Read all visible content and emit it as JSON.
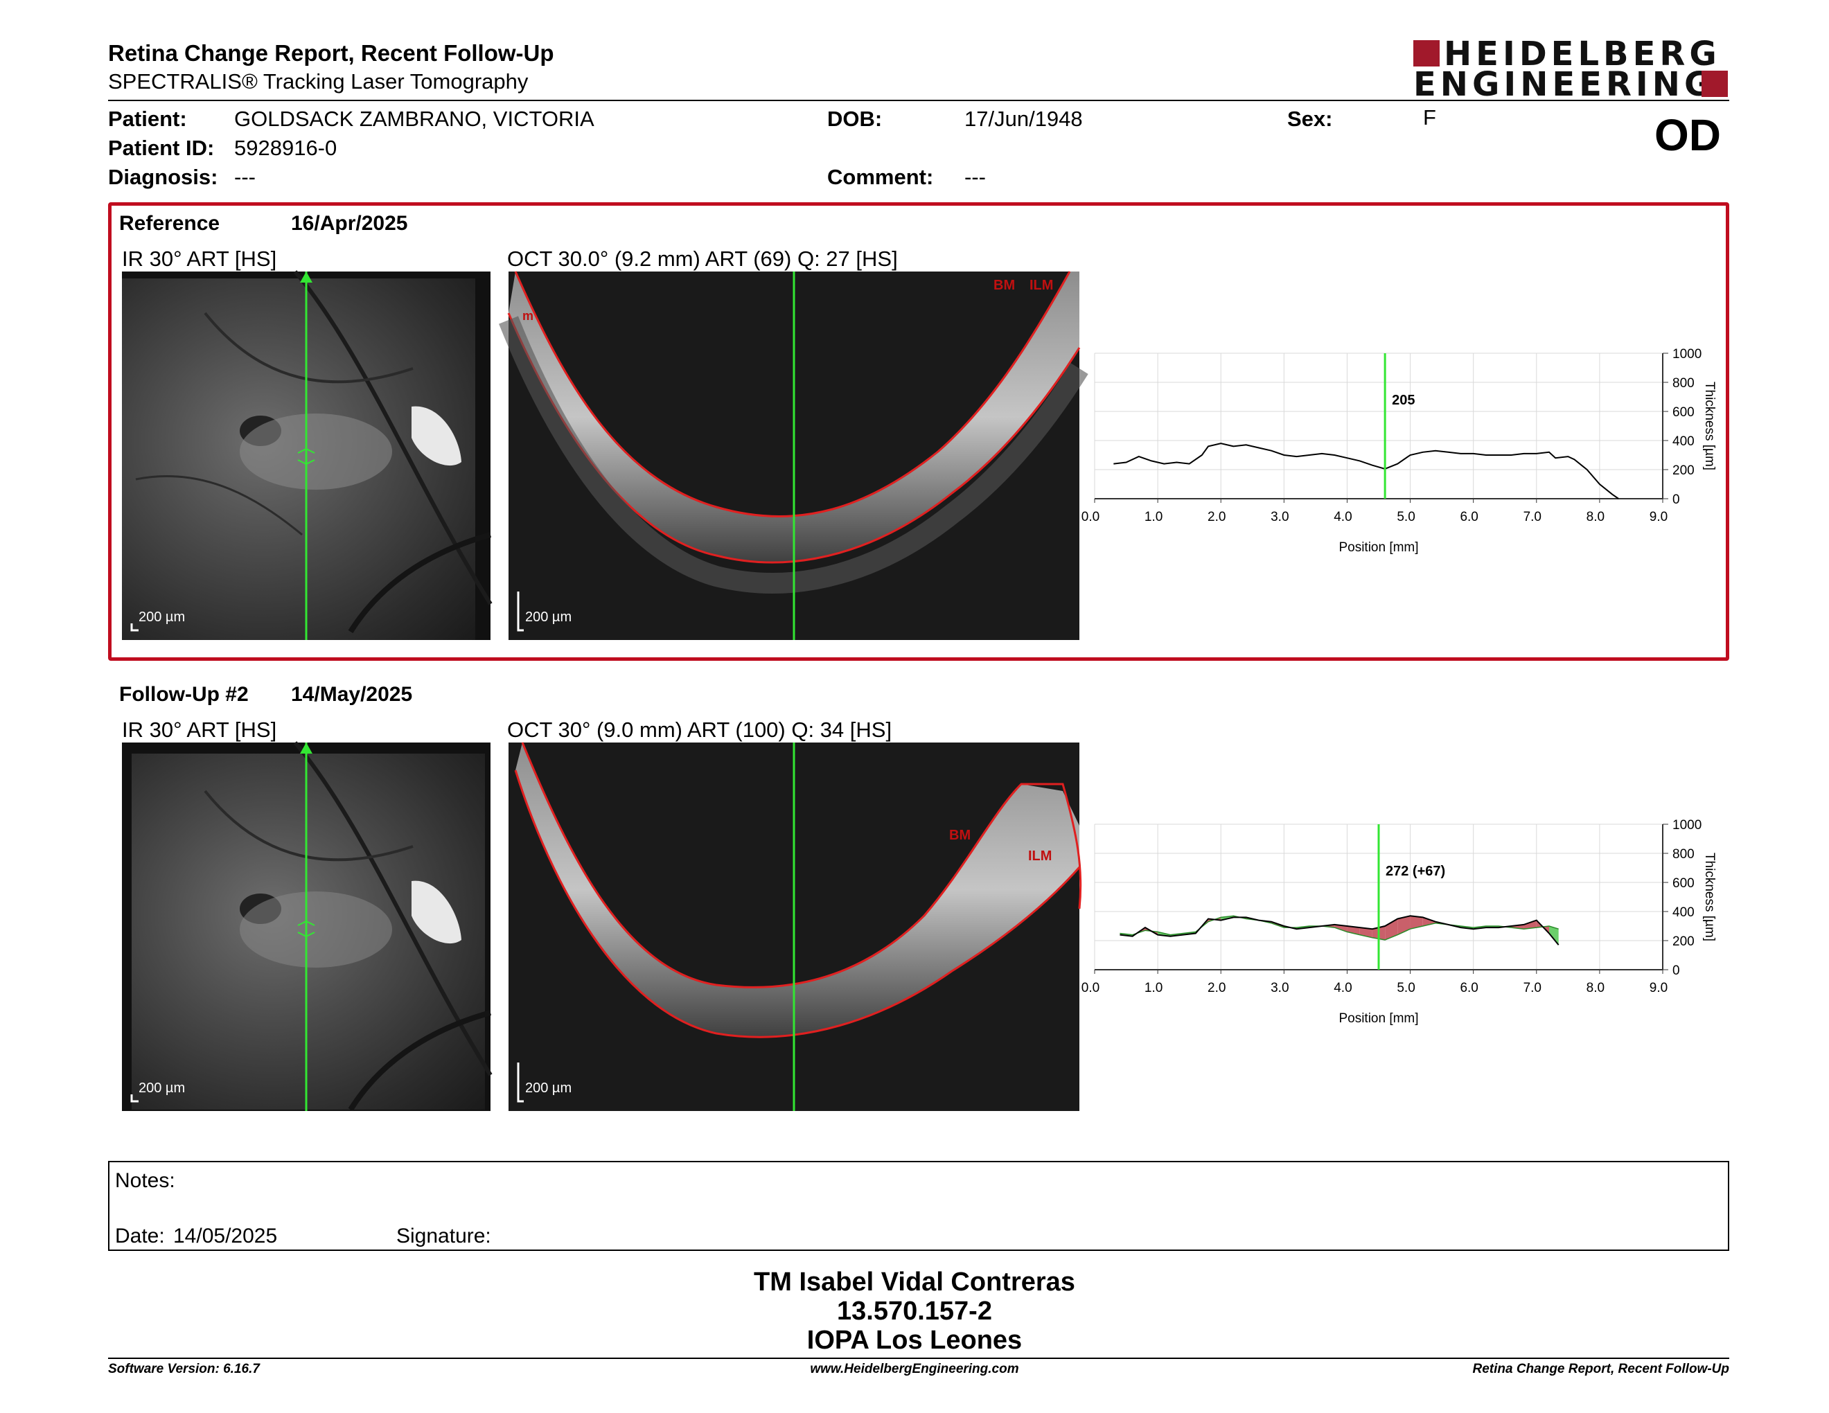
{
  "header": {
    "title": "Retina Change Report, Recent Follow-Up",
    "subtitle": "SPECTRALIS® Tracking Laser Tomography",
    "logo_line1": "HEIDELBERG",
    "logo_line2": "ENGINEERING",
    "eye": "OD"
  },
  "patient": {
    "patient_label": "Patient:",
    "patient_value": "GOLDSACK ZAMBRANO, VICTORIA",
    "id_label": "Patient ID:",
    "id_value": "5928916-0",
    "diagnosis_label": "Diagnosis:",
    "diagnosis_value": "---",
    "dob_label": "DOB:",
    "dob_value": "17/Jun/1948",
    "comment_label": "Comment:",
    "comment_value": "---",
    "sex_label": "Sex:",
    "sex_value": "F"
  },
  "reference": {
    "label": "Reference",
    "date": "16/Apr/2025",
    "ir_title": "IR 30° ART [HS]",
    "oct_title": "OCT 30.0° (9.2 mm) ART (69) Q: 27 [HS]",
    "ir_scale": "200 µm",
    "oct_scale": "200 µm",
    "seg_labels": [
      "BM",
      "ILM",
      "m"
    ]
  },
  "followup": {
    "label": "Follow-Up #2",
    "date": "14/May/2025",
    "ir_title": "IR 30° ART [HS]",
    "oct_title": "OCT 30° (9.0 mm) ART (100) Q: 34 [HS]",
    "ir_scale": "200 µm",
    "oct_scale": "200 µm",
    "seg_labels": [
      "BM",
      "ILM"
    ]
  },
  "chart_data": [
    {
      "type": "line",
      "name": "reference-thickness",
      "xlabel": "Position [mm]",
      "ylabel": "Thickness [µm]",
      "xlim": [
        0,
        9
      ],
      "ylim": [
        0,
        1000
      ],
      "xticks": [
        "0.0",
        "1.0",
        "2.0",
        "3.0",
        "4.0",
        "5.0",
        "6.0",
        "7.0",
        "8.0",
        "9.0"
      ],
      "yticks": [
        "0",
        "200",
        "400",
        "600",
        "800",
        "1000"
      ],
      "grid": true,
      "marker_x": 4.6,
      "marker_label": "205",
      "x": [
        0.3,
        0.5,
        0.7,
        0.9,
        1.1,
        1.3,
        1.5,
        1.7,
        1.8,
        2.0,
        2.2,
        2.4,
        2.6,
        2.8,
        3.0,
        3.2,
        3.4,
        3.6,
        3.8,
        4.0,
        4.2,
        4.4,
        4.6,
        4.8,
        5.0,
        5.2,
        5.4,
        5.6,
        5.8,
        6.0,
        6.2,
        6.4,
        6.6,
        6.8,
        7.0,
        7.2,
        7.3,
        7.5,
        7.6,
        7.8,
        8.0,
        8.2,
        8.3
      ],
      "y": [
        240,
        250,
        290,
        260,
        240,
        250,
        240,
        300,
        360,
        380,
        360,
        370,
        350,
        330,
        300,
        290,
        300,
        310,
        300,
        280,
        260,
        230,
        205,
        240,
        300,
        320,
        330,
        320,
        310,
        310,
        300,
        300,
        300,
        310,
        310,
        320,
        280,
        290,
        270,
        200,
        100,
        30,
        0
      ]
    },
    {
      "type": "line",
      "name": "followup-thickness",
      "xlabel": "Position [mm]",
      "ylabel": "Thickness [µm]",
      "xlim": [
        0,
        9
      ],
      "ylim": [
        0,
        1000
      ],
      "xticks": [
        "0.0",
        "1.0",
        "2.0",
        "3.0",
        "4.0",
        "5.0",
        "6.0",
        "7.0",
        "8.0",
        "9.0"
      ],
      "yticks": [
        "0",
        "200",
        "400",
        "600",
        "800",
        "1000"
      ],
      "grid": true,
      "marker_x": 4.5,
      "marker_label": "272 (+67)",
      "series": [
        {
          "role": "follow-up",
          "x": [
            0.4,
            0.6,
            0.8,
            1.0,
            1.2,
            1.4,
            1.6,
            1.8,
            2.0,
            2.2,
            2.4,
            2.6,
            2.8,
            3.0,
            3.2,
            3.4,
            3.6,
            3.8,
            4.0,
            4.2,
            4.4,
            4.6,
            4.8,
            5.0,
            5.2,
            5.4,
            5.6,
            5.8,
            6.0,
            6.2,
            6.4,
            6.6,
            6.8,
            7.0,
            7.2,
            7.35
          ],
          "y": [
            240,
            230,
            290,
            240,
            230,
            240,
            250,
            350,
            340,
            360,
            360,
            340,
            330,
            300,
            280,
            290,
            300,
            310,
            300,
            290,
            280,
            300,
            350,
            370,
            360,
            330,
            310,
            290,
            280,
            290,
            290,
            300,
            310,
            340,
            250,
            170
          ]
        },
        {
          "role": "reference",
          "x": [
            0.4,
            0.6,
            0.8,
            1.0,
            1.2,
            1.4,
            1.6,
            1.8,
            2.0,
            2.2,
            2.4,
            2.6,
            2.8,
            3.0,
            3.2,
            3.4,
            3.6,
            3.8,
            4.0,
            4.2,
            4.4,
            4.6,
            4.8,
            5.0,
            5.2,
            5.4,
            5.6,
            5.8,
            6.0,
            6.2,
            6.4,
            6.6,
            6.8,
            7.0,
            7.2,
            7.35
          ],
          "y": [
            250,
            240,
            270,
            260,
            240,
            250,
            260,
            330,
            360,
            370,
            350,
            340,
            320,
            290,
            290,
            300,
            300,
            290,
            260,
            240,
            220,
            205,
            240,
            280,
            300,
            320,
            310,
            300,
            290,
            300,
            300,
            290,
            280,
            290,
            300,
            280
          ]
        }
      ],
      "colors": {
        "increase": "#c9606a",
        "decrease": "#6bcf6b"
      }
    }
  ],
  "notes": {
    "notes_label": "Notes:",
    "date_label": "Date:",
    "date_value": "14/05/2025",
    "signature_label": "Signature:"
  },
  "signature_block": {
    "name": "TM Isabel Vidal Contreras",
    "id": "13.570.157-2",
    "org": "IOPA Los Leones"
  },
  "footer": {
    "software": "Software Version: 6.16.7",
    "website": "www.HeidelbergEngineering.com",
    "report": "Retina Change Report, Recent Follow-Up"
  },
  "colors": {
    "accent": "#c00d1f",
    "logo": "#a1192b",
    "scan_line": "#33e633",
    "segmentation": "#e02020"
  }
}
